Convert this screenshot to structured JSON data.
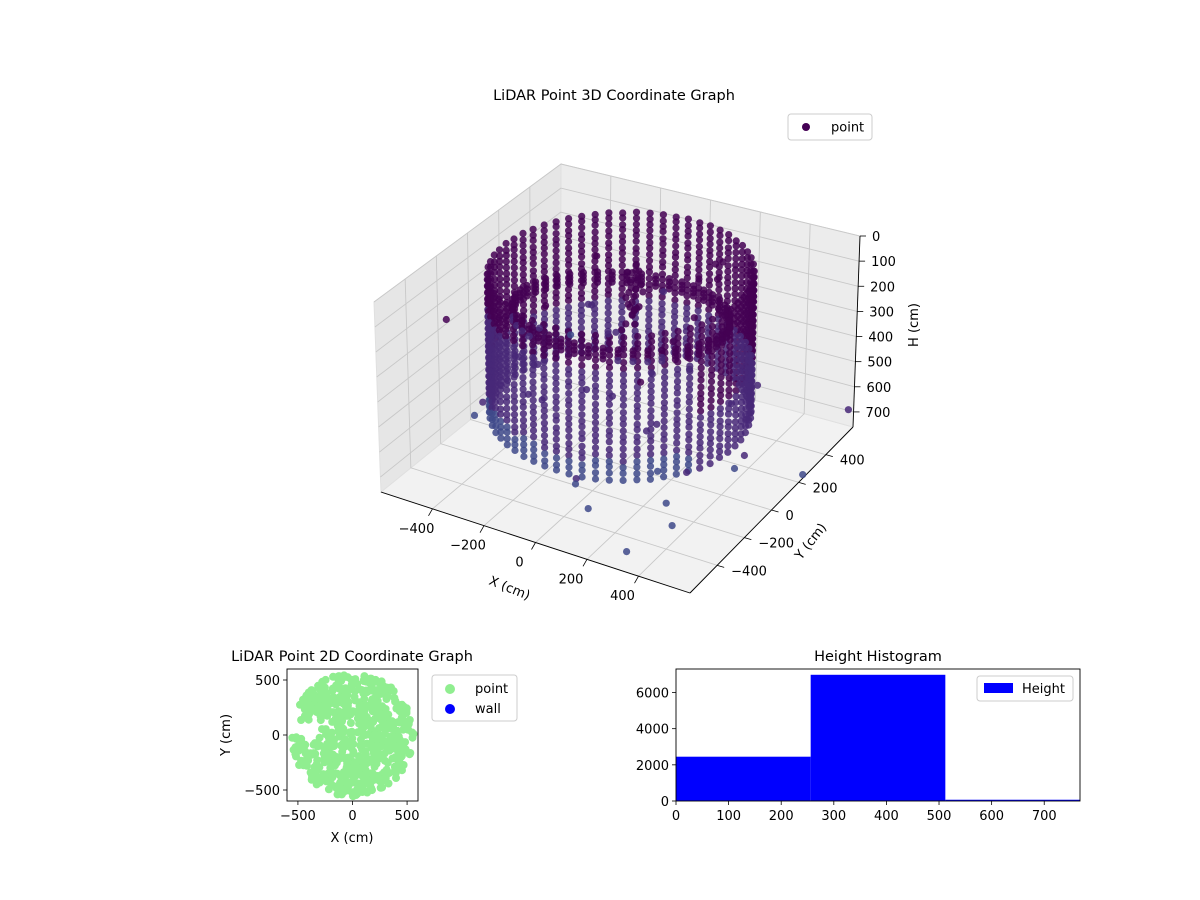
{
  "chart_data": [
    {
      "type": "scatter3d",
      "title": "LiDAR Point 3D Coordinate Graph",
      "xlabel": "X (cm)",
      "ylabel": "Y (cm)",
      "zlabel": "H (cm)",
      "legend": {
        "entries": [
          "point"
        ],
        "placement": "top-right"
      },
      "x_ticks": [
        -400,
        -200,
        0,
        200,
        400
      ],
      "y_ticks": [
        -400,
        -200,
        0,
        200,
        400
      ],
      "z_ticks": [
        0,
        100,
        200,
        300,
        400,
        500,
        600,
        700
      ],
      "xlim": [
        -600,
        600
      ],
      "ylim": [
        -600,
        600
      ],
      "zlim": [
        0,
        760
      ],
      "z_inverted": true,
      "grid": true,
      "colormap": [
        "#440154",
        "#482878",
        "#3e4989",
        "#31688e",
        "#26828e"
      ],
      "description_points": "dense cylindrical ring of points with radius ~450 cm spanning heights 0-560 cm, an inner tilted ring near height 200 cm, sparse scattered outliers"
    },
    {
      "type": "scatter",
      "title": "LiDAR Point 2D Coordinate Graph",
      "xlabel": "X (cm)",
      "ylabel": "Y (cm)",
      "xlim": [
        -600,
        600
      ],
      "ylim": [
        -600,
        600
      ],
      "x_ticks": [
        -500,
        0,
        500
      ],
      "y_ticks": [
        -500,
        0,
        500
      ],
      "legend": {
        "entries": [
          "point",
          "wall"
        ],
        "placement": "right"
      },
      "colors": {
        "point": "#90ee90",
        "wall": "#0000ff"
      }
    },
    {
      "type": "histogram",
      "title": "Height Histogram",
      "xlim": [
        0,
        768
      ],
      "ylim": [
        0,
        7300
      ],
      "x_ticks": [
        0,
        100,
        200,
        300,
        400,
        500,
        600,
        700
      ],
      "y_ticks": [
        0,
        2000,
        4000,
        6000
      ],
      "bins": [
        {
          "start": 0,
          "end": 256,
          "count": 2450
        },
        {
          "start": 256,
          "end": 512,
          "count": 6980
        },
        {
          "start": 512,
          "end": 768,
          "count": 70
        }
      ],
      "legend": {
        "entries": [
          "Height"
        ],
        "placement": "top-right"
      },
      "color": "#0000ff"
    }
  ]
}
